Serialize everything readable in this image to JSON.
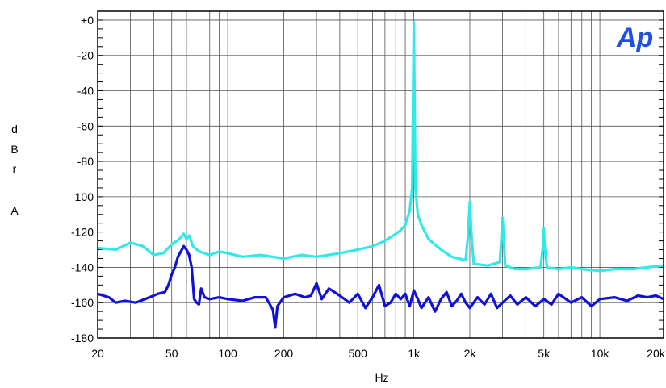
{
  "chart_data": {
    "type": "line",
    "title": "",
    "xlabel": "Hz",
    "ylabel": "dBr A",
    "ylabel_chars": [
      "d",
      "B",
      "r",
      "",
      "A"
    ],
    "logo": "Ap",
    "x_scale": "log",
    "xlim": [
      20,
      22000
    ],
    "ylim": [
      -180,
      5
    ],
    "grid": true,
    "x_ticks": [
      {
        "value": 20,
        "label": "20"
      },
      {
        "value": 50,
        "label": "50"
      },
      {
        "value": 100,
        "label": "100"
      },
      {
        "value": 200,
        "label": "200"
      },
      {
        "value": 500,
        "label": "500"
      },
      {
        "value": 1000,
        "label": "1k"
      },
      {
        "value": 2000,
        "label": "2k"
      },
      {
        "value": 5000,
        "label": "5k"
      },
      {
        "value": 10000,
        "label": "10k"
      },
      {
        "value": 20000,
        "label": "20k"
      }
    ],
    "y_ticks": [
      {
        "value": 0,
        "label": "+0"
      },
      {
        "value": -20,
        "label": "-20"
      },
      {
        "value": -40,
        "label": "-40"
      },
      {
        "value": -60,
        "label": "-60"
      },
      {
        "value": -80,
        "label": "-80"
      },
      {
        "value": -100,
        "label": "-100"
      },
      {
        "value": -120,
        "label": "-120"
      },
      {
        "value": -140,
        "label": "-140"
      },
      {
        "value": -160,
        "label": "-160"
      },
      {
        "value": -180,
        "label": "-180"
      }
    ],
    "series": [
      {
        "color": "#33e8e8",
        "points": [
          [
            20,
            -129
          ],
          [
            25,
            -130
          ],
          [
            30,
            -126
          ],
          [
            35,
            -128
          ],
          [
            40,
            -133
          ],
          [
            45,
            -132
          ],
          [
            50,
            -127
          ],
          [
            55,
            -124
          ],
          [
            58,
            -121
          ],
          [
            60,
            -124
          ],
          [
            62,
            -122
          ],
          [
            65,
            -128
          ],
          [
            70,
            -131
          ],
          [
            80,
            -133
          ],
          [
            90,
            -131
          ],
          [
            100,
            -132
          ],
          [
            120,
            -134
          ],
          [
            150,
            -133
          ],
          [
            200,
            -135
          ],
          [
            250,
            -133
          ],
          [
            300,
            -134
          ],
          [
            400,
            -132
          ],
          [
            500,
            -130
          ],
          [
            600,
            -128
          ],
          [
            700,
            -125
          ],
          [
            800,
            -121
          ],
          [
            850,
            -119
          ],
          [
            900,
            -116
          ],
          [
            950,
            -108
          ],
          [
            980,
            -95
          ],
          [
            1000,
            -1
          ],
          [
            1020,
            -95
          ],
          [
            1050,
            -110
          ],
          [
            1100,
            -116
          ],
          [
            1200,
            -124
          ],
          [
            1400,
            -130
          ],
          [
            1600,
            -134
          ],
          [
            1900,
            -136
          ],
          [
            1950,
            -124
          ],
          [
            2000,
            -103
          ],
          [
            2050,
            -124
          ],
          [
            2100,
            -138
          ],
          [
            2500,
            -139
          ],
          [
            2900,
            -137
          ],
          [
            2950,
            -125
          ],
          [
            3000,
            -112
          ],
          [
            3050,
            -125
          ],
          [
            3100,
            -139
          ],
          [
            3500,
            -141
          ],
          [
            4000,
            -141
          ],
          [
            4800,
            -140
          ],
          [
            4950,
            -128
          ],
          [
            5000,
            -118
          ],
          [
            5050,
            -128
          ],
          [
            5200,
            -140
          ],
          [
            6000,
            -141
          ],
          [
            7000,
            -140
          ],
          [
            8000,
            -141
          ],
          [
            10000,
            -142
          ],
          [
            12000,
            -141
          ],
          [
            15000,
            -141
          ],
          [
            18000,
            -140
          ],
          [
            22000,
            -139
          ]
        ]
      },
      {
        "color": "#1010d8",
        "points": [
          [
            20,
            -155
          ],
          [
            23,
            -157
          ],
          [
            25,
            -160
          ],
          [
            28,
            -159
          ],
          [
            32,
            -160
          ],
          [
            38,
            -157
          ],
          [
            42,
            -155
          ],
          [
            46,
            -154
          ],
          [
            48,
            -150
          ],
          [
            50,
            -144
          ],
          [
            52,
            -140
          ],
          [
            54,
            -134
          ],
          [
            56,
            -131
          ],
          [
            58,
            -128
          ],
          [
            60,
            -130
          ],
          [
            62,
            -133
          ],
          [
            64,
            -140
          ],
          [
            66,
            -158
          ],
          [
            68,
            -160
          ],
          [
            70,
            -161
          ],
          [
            72,
            -152
          ],
          [
            75,
            -157
          ],
          [
            80,
            -158
          ],
          [
            90,
            -157
          ],
          [
            100,
            -158
          ],
          [
            120,
            -159
          ],
          [
            140,
            -157
          ],
          [
            160,
            -157
          ],
          [
            175,
            -164
          ],
          [
            180,
            -174
          ],
          [
            185,
            -162
          ],
          [
            200,
            -157
          ],
          [
            230,
            -155
          ],
          [
            260,
            -157
          ],
          [
            280,
            -156
          ],
          [
            300,
            -149
          ],
          [
            320,
            -158
          ],
          [
            350,
            -152
          ],
          [
            400,
            -156
          ],
          [
            450,
            -160
          ],
          [
            500,
            -155
          ],
          [
            550,
            -163
          ],
          [
            600,
            -157
          ],
          [
            650,
            -150
          ],
          [
            700,
            -162
          ],
          [
            750,
            -160
          ],
          [
            800,
            -155
          ],
          [
            850,
            -158
          ],
          [
            900,
            -155
          ],
          [
            950,
            -162
          ],
          [
            1000,
            -153
          ],
          [
            1050,
            -158
          ],
          [
            1100,
            -163
          ],
          [
            1200,
            -157
          ],
          [
            1300,
            -165
          ],
          [
            1400,
            -158
          ],
          [
            1500,
            -154
          ],
          [
            1600,
            -162
          ],
          [
            1700,
            -159
          ],
          [
            1800,
            -155
          ],
          [
            1900,
            -160
          ],
          [
            2000,
            -163
          ],
          [
            2200,
            -157
          ],
          [
            2400,
            -161
          ],
          [
            2600,
            -155
          ],
          [
            2800,
            -163
          ],
          [
            3000,
            -160
          ],
          [
            3300,
            -156
          ],
          [
            3600,
            -161
          ],
          [
            4000,
            -157
          ],
          [
            4500,
            -162
          ],
          [
            5000,
            -158
          ],
          [
            5500,
            -161
          ],
          [
            6000,
            -155
          ],
          [
            7000,
            -160
          ],
          [
            8000,
            -157
          ],
          [
            9000,
            -162
          ],
          [
            10000,
            -158
          ],
          [
            12000,
            -157
          ],
          [
            14000,
            -159
          ],
          [
            16000,
            -156
          ],
          [
            18000,
            -157
          ],
          [
            20000,
            -156
          ],
          [
            22000,
            -158
          ]
        ]
      }
    ]
  }
}
